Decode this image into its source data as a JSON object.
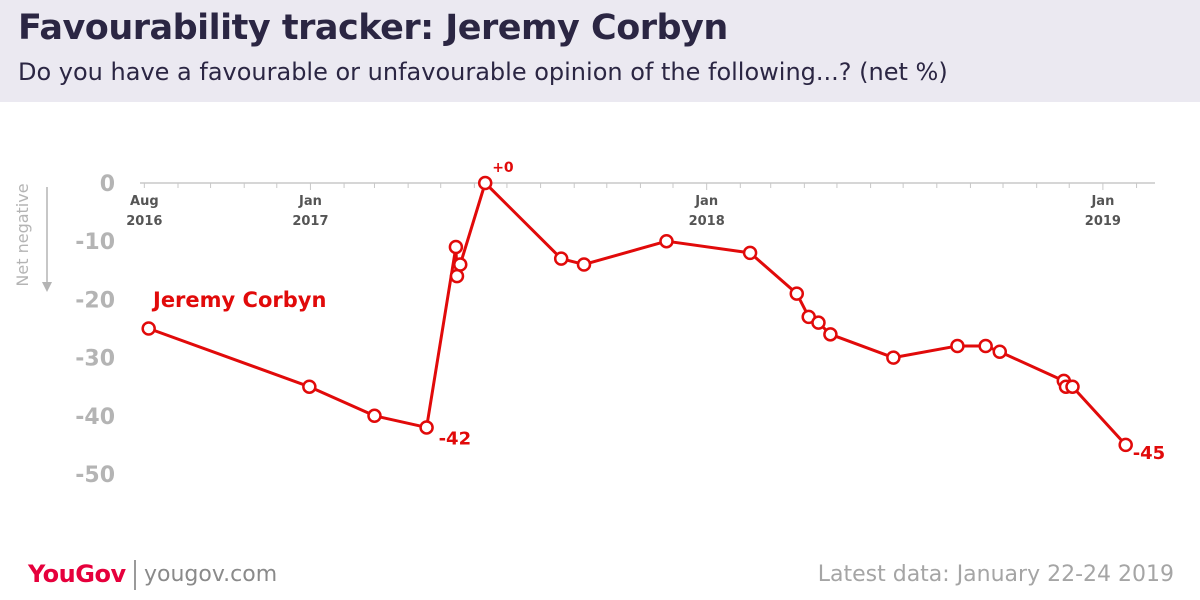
{
  "header": {
    "title": "Favourability tracker: Jeremy Corbyn",
    "subtitle": "Do you have a favourable or unfavourable opinion of the following...? (net %)"
  },
  "footer": {
    "brand": "YouGov",
    "site": "yougov.com",
    "latest": "Latest data: January 22-24 2019"
  },
  "colors": {
    "series": "#e10a0a",
    "axis": "#c8c8c8",
    "tick_label": "#b4b4b4",
    "date_label": "#555555",
    "header_bg": "#ebe9f1",
    "brand": "#e6003c"
  },
  "chart_data": {
    "type": "line",
    "title": "Favourability tracker: Jeremy Corbyn",
    "subtitle": "Do you have a favourable or unfavourable opinion of the following...? (net %)",
    "ylabel": "Net negative",
    "ylim": [
      -50,
      0
    ],
    "yticks": [
      0,
      -10,
      -20,
      -30,
      -40,
      -50
    ],
    "xlim": [
      "2016-07-28",
      "2019-02-18"
    ],
    "x_ticks": [
      {
        "date": "2016-08-01",
        "line1": "Aug",
        "line2": "2016"
      },
      {
        "date": "2017-01-01",
        "line1": "Jan",
        "line2": "2017"
      },
      {
        "date": "2018-01-01",
        "line1": "Jan",
        "line2": "2018"
      },
      {
        "date": "2019-01-01",
        "line1": "Jan",
        "line2": "2019"
      }
    ],
    "grid": false,
    "series": [
      {
        "name": "Jeremy Corbyn",
        "x": [
          "2016-08-05",
          "2016-12-31",
          "2017-03-01",
          "2017-04-18",
          "2017-05-15",
          "2017-05-16",
          "2017-05-19",
          "2017-06-11",
          "2017-08-20",
          "2017-09-10",
          "2017-11-25",
          "2018-02-10",
          "2018-03-25",
          "2018-04-05",
          "2018-04-14",
          "2018-04-25",
          "2018-06-22",
          "2018-08-20",
          "2018-09-15",
          "2018-09-28",
          "2018-11-26",
          "2018-11-28",
          "2018-12-04",
          "2019-01-22"
        ],
        "y": [
          -25,
          -35,
          -40,
          -42,
          -11,
          -16,
          -14,
          0,
          -13,
          -14,
          -10,
          -12,
          -19,
          -23,
          -24,
          -26,
          -30,
          -28,
          -28,
          -29,
          -34,
          -35,
          -35,
          -45
        ]
      }
    ],
    "annotations": [
      {
        "date": "2017-04-18",
        "value": -42,
        "text": "-42"
      },
      {
        "date": "2017-06-11",
        "value": 0,
        "text": "+0"
      },
      {
        "date": "2019-01-22",
        "value": -45,
        "text": "-45"
      }
    ]
  }
}
